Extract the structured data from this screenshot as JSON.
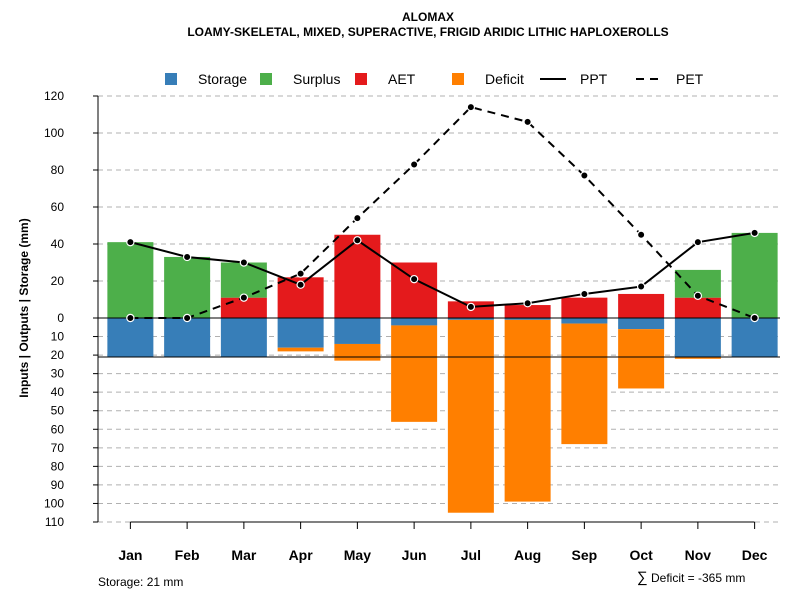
{
  "colors": {
    "storage": "#377EB8",
    "surplus": "#4DAF4A",
    "aet": "#E41A1C",
    "deficit": "#FF7F00",
    "grid": "#b0b0b0",
    "line": "#000000"
  },
  "chart_data": {
    "type": "bar",
    "title": "ALOMAX",
    "subtitle": "LOAMY-SKELETAL, MIXED, SUPERACTIVE, FRIGID ARIDIC LITHIC HAPLOXEROLLS",
    "ylabel": "Inputs | Outputs | Storage    (mm)",
    "categories": [
      "Jan",
      "Feb",
      "Mar",
      "Apr",
      "May",
      "Jun",
      "Jul",
      "Aug",
      "Sep",
      "Oct",
      "Nov",
      "Dec"
    ],
    "ylim_upper": [
      0,
      120
    ],
    "ylim_lower": [
      0,
      110
    ],
    "upper_ticks": [
      "120",
      "100",
      "80",
      "60",
      "40",
      "20",
      "0"
    ],
    "lower_ticks": [
      "10",
      "20",
      "30",
      "40",
      "50",
      "60",
      "70",
      "80",
      "90",
      "100",
      "110"
    ],
    "legend": [
      "Storage",
      "Surplus",
      "AET",
      "Deficit",
      "PPT",
      "PET"
    ],
    "series": [
      {
        "name": "AET",
        "values": [
          0,
          0,
          11,
          22,
          45,
          30,
          9,
          7,
          11,
          13,
          11,
          0
        ]
      },
      {
        "name": "Surplus",
        "values": [
          41,
          33,
          19,
          0,
          0,
          0,
          0,
          0,
          0,
          0,
          15,
          46
        ]
      },
      {
        "name": "Storage",
        "values": [
          21,
          21,
          21,
          16,
          14,
          4,
          1,
          1,
          3,
          6,
          21,
          21
        ]
      },
      {
        "name": "Deficit",
        "values": [
          0,
          0,
          0,
          2,
          9,
          52,
          104,
          98,
          65,
          32,
          1,
          0
        ]
      },
      {
        "name": "PPT",
        "values": [
          41,
          33,
          30,
          18,
          42,
          21,
          6,
          8,
          13,
          17,
          41,
          46
        ]
      },
      {
        "name": "PET",
        "values": [
          0,
          0,
          11,
          24,
          54,
          83,
          114,
          106,
          77,
          45,
          12,
          0
        ]
      }
    ],
    "storage_text": "Storage: 21 mm",
    "deficit_symbol": "∑",
    "deficit_text": "Deficit = -365 mm"
  }
}
